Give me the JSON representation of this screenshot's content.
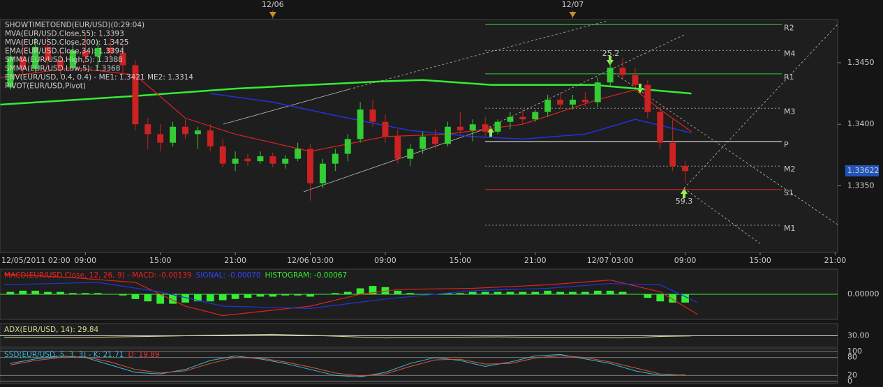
{
  "chart_data": [
    {
      "type": "candlestick",
      "legend": [
        {
          "text": "SHOWTIMETOEND(EUR/USD)(0:29:04)",
          "color": "#ffffff"
        },
        {
          "text": "MVA(EUR/USD.Close,55): 1.3393",
          "color": "#3344ff"
        },
        {
          "text": "MVA(EUR/USD.Close,200): 1.3425",
          "color": "#33dd33"
        },
        {
          "text": "EMA(EUR/USD.Close,34): 1.3394",
          "color": "#ee2222"
        },
        {
          "text": "SMMA(EUR/USD.High,5): 1.3388",
          "color": "#bbbbbb"
        },
        {
          "text": "SMMA(EUR/USD.Low,5): 1.3368",
          "color": "#bbbbbb"
        },
        {
          "text": "ENV(EUR/USD, 0.4, 0.4) - ME1: 1.3421  ME2: 1.3314",
          "color": "#888888"
        },
        {
          "text": "PIVOT(EUR/USD,Pivot)",
          "color": "#ffffff"
        }
      ],
      "up_color": "#33cc33",
      "down_color": "#cc2222",
      "x": [
        3,
        4,
        5,
        6,
        7,
        8,
        9,
        10,
        11,
        12,
        13,
        14,
        15,
        16,
        17,
        18,
        19,
        20,
        21,
        22,
        23,
        24,
        25,
        26,
        27,
        28,
        29,
        30,
        31,
        32,
        33,
        34,
        35,
        36,
        37,
        38,
        39,
        40,
        41,
        42,
        43,
        44,
        45,
        46,
        47,
        48,
        49,
        50,
        51,
        52,
        53,
        54,
        55,
        56,
        57
      ],
      "ohlc": [
        [
          1.343,
          1.3462,
          1.3428,
          1.3455
        ],
        [
          1.3455,
          1.3468,
          1.344,
          1.3445
        ],
        [
          1.3445,
          1.347,
          1.3442,
          1.3463
        ],
        [
          1.3463,
          1.3471,
          1.3448,
          1.3452
        ],
        [
          1.3452,
          1.3462,
          1.344,
          1.3446
        ],
        [
          1.3446,
          1.3466,
          1.3444,
          1.346
        ],
        [
          1.346,
          1.3472,
          1.345,
          1.3455
        ],
        [
          1.3455,
          1.3468,
          1.3446,
          1.3462
        ],
        [
          1.3462,
          1.347,
          1.3452,
          1.3458
        ],
        [
          1.3458,
          1.3465,
          1.344,
          1.3448
        ],
        [
          1.3448,
          1.3452,
          1.3395,
          1.34
        ],
        [
          1.34,
          1.3405,
          1.338,
          1.3392
        ],
        [
          1.3392,
          1.34,
          1.3378,
          1.3385
        ],
        [
          1.3385,
          1.3402,
          1.3382,
          1.3398
        ],
        [
          1.3398,
          1.3404,
          1.3388,
          1.3392
        ],
        [
          1.3392,
          1.3398,
          1.338,
          1.3395
        ],
        [
          1.3395,
          1.34,
          1.3378,
          1.3382
        ],
        [
          1.3382,
          1.3388,
          1.3365,
          1.3368
        ],
        [
          1.3368,
          1.3378,
          1.3362,
          1.3372
        ],
        [
          1.3372,
          1.3376,
          1.3366,
          1.337
        ],
        [
          1.337,
          1.3378,
          1.3368,
          1.3374
        ],
        [
          1.3374,
          1.3377,
          1.3365,
          1.3368
        ],
        [
          1.3368,
          1.3375,
          1.3364,
          1.3372
        ],
        [
          1.3372,
          1.3385,
          1.337,
          1.338
        ],
        [
          1.338,
          1.3384,
          1.3338,
          1.3352
        ],
        [
          1.3352,
          1.3372,
          1.3348,
          1.3368
        ],
        [
          1.3368,
          1.338,
          1.3362,
          1.3376
        ],
        [
          1.3376,
          1.3392,
          1.337,
          1.3388
        ],
        [
          1.3388,
          1.3418,
          1.3385,
          1.3412
        ],
        [
          1.3412,
          1.342,
          1.3398,
          1.3402
        ],
        [
          1.3402,
          1.3408,
          1.3385,
          1.339
        ],
        [
          1.339,
          1.3396,
          1.3368,
          1.3372
        ],
        [
          1.3372,
          1.3384,
          1.3366,
          1.338
        ],
        [
          1.338,
          1.3394,
          1.3376,
          1.339
        ],
        [
          1.339,
          1.3396,
          1.338,
          1.3384
        ],
        [
          1.3384,
          1.3402,
          1.3382,
          1.3398
        ],
        [
          1.3398,
          1.341,
          1.3392,
          1.3395
        ],
        [
          1.3395,
          1.3404,
          1.3386,
          1.34
        ],
        [
          1.34,
          1.3406,
          1.339,
          1.3394
        ],
        [
          1.3394,
          1.3404,
          1.3392,
          1.3402
        ],
        [
          1.3402,
          1.341,
          1.3396,
          1.3406
        ],
        [
          1.3406,
          1.3412,
          1.34,
          1.3404
        ],
        [
          1.3404,
          1.3412,
          1.3402,
          1.341
        ],
        [
          1.341,
          1.3424,
          1.3406,
          1.342
        ],
        [
          1.342,
          1.3426,
          1.3412,
          1.3416
        ],
        [
          1.3416,
          1.3424,
          1.3412,
          1.342
        ],
        [
          1.342,
          1.3426,
          1.3414,
          1.3418
        ],
        [
          1.3418,
          1.3438,
          1.3414,
          1.3434
        ],
        [
          1.3434,
          1.3452,
          1.343,
          1.3446
        ],
        [
          1.3446,
          1.3454,
          1.3436,
          1.344
        ],
        [
          1.344,
          1.3446,
          1.343,
          1.3432
        ],
        [
          1.3432,
          1.3436,
          1.3405,
          1.341
        ],
        [
          1.341,
          1.3414,
          1.338,
          1.3385
        ],
        [
          1.3385,
          1.3404,
          1.3362,
          1.3366
        ],
        [
          1.3366,
          1.337,
          1.3352,
          1.3362
        ]
      ],
      "lines": [
        {
          "color": "#33ee33",
          "width": 2.5,
          "x": [
            2.2,
            13,
            21,
            33,
            36,
            41.5,
            49.7,
            57.5
          ],
          "values": [
            1.3416,
            1.3423,
            1.3429,
            1.3435,
            1.3436,
            1.3432,
            1.3432,
            1.3425
          ]
        },
        {
          "color": "#2233dd",
          "width": 1.5,
          "x": [
            19,
            24,
            30,
            35,
            40,
            44,
            49,
            53,
            57.5
          ],
          "values": [
            1.3425,
            1.3418,
            1.3405,
            1.3395,
            1.339,
            1.3388,
            1.3392,
            1.3404,
            1.3393
          ]
        },
        {
          "color": "#dd2222",
          "width": 1.2,
          "x": [
            2.2,
            8,
            13,
            17,
            21,
            27,
            33,
            38,
            44,
            50,
            53,
            55,
            57.5
          ],
          "values": [
            1.3438,
            1.3446,
            1.344,
            1.3405,
            1.3392,
            1.3378,
            1.339,
            1.3392,
            1.34,
            1.342,
            1.3428,
            1.3412,
            1.3394
          ]
        }
      ],
      "levels": [
        {
          "label": "R2",
          "value": 1.3481,
          "color": "#33cc33",
          "dash": false
        },
        {
          "label": "M4",
          "value": 1.346,
          "color": "#999999",
          "dash": true
        },
        {
          "label": "R1",
          "value": 1.3441,
          "color": "#33cc33",
          "dash": false
        },
        {
          "label": "M3",
          "value": 1.3413,
          "color": "#999999",
          "dash": true
        },
        {
          "label": "P",
          "value": 1.3386,
          "color": "#ffffff",
          "dash": false
        },
        {
          "label": "M2",
          "value": 1.3366,
          "color": "#999999",
          "dash": true
        },
        {
          "label": "S1",
          "value": 1.3347,
          "color": "#dd2222",
          "dash": false
        },
        {
          "label": "M1",
          "value": 1.3318,
          "color": "#999999",
          "dash": true
        }
      ],
      "annotations": [
        "25.2",
        "59.3"
      ],
      "last_price": {
        "value": 1.33622,
        "label": "1.33622"
      },
      "date_markers": [
        {
          "value": 24,
          "label": "12/06"
        },
        {
          "value": 48,
          "label": "12/07"
        }
      ],
      "xlim": [
        2.17,
        69.2
      ],
      "ylim": [
        1.3297,
        1.3484
      ],
      "xticks": [
        {
          "value": 2,
          "label": "12/05/2011 02:00"
        },
        {
          "value": 9,
          "label": "09:00"
        },
        {
          "value": 15,
          "label": "15:00"
        },
        {
          "value": 21,
          "label": "21:00"
        },
        {
          "value": 27,
          "label": "12/06 03:00"
        },
        {
          "value": 33,
          "label": "09:00"
        },
        {
          "value": 39,
          "label": "15:00"
        },
        {
          "value": 45,
          "label": "21:00"
        },
        {
          "value": 51,
          "label": "12/07 03:00"
        },
        {
          "value": 57,
          "label": "09:00"
        },
        {
          "value": 63,
          "label": "15:00"
        },
        {
          "value": 69,
          "label": "21:00"
        }
      ],
      "yticks": [
        {
          "value": 1.335,
          "label": "1.3350"
        },
        {
          "value": 1.34,
          "label": "1.3400"
        },
        {
          "value": 1.345,
          "label": "1.3450"
        }
      ]
    },
    {
      "type": "macd",
      "legend": [
        {
          "text": "MACD(EUR/USD.Close, 12, 26, 9) -  MACD: -0.00139",
          "color": "#ee2222"
        },
        {
          "text": "SIGNAL: -0.00070",
          "color": "#3344ff"
        },
        {
          "text": "HISTOGRAM: -0.00067",
          "color": "#33ee33"
        }
      ],
      "color": "#33ee33",
      "x": [
        3,
        4,
        5,
        6,
        7,
        8,
        9,
        10,
        11,
        12,
        13,
        14,
        15,
        16,
        17,
        18,
        19,
        20,
        21,
        22,
        23,
        24,
        25,
        26,
        27,
        28,
        29,
        30,
        31,
        32,
        33,
        34,
        35,
        36,
        37,
        38,
        39,
        40,
        41,
        42,
        43,
        44,
        45,
        46,
        47,
        48,
        49,
        50,
        51,
        52,
        53,
        54,
        55,
        56,
        57
      ],
      "values": [
        0.0002,
        0.0003,
        0.0003,
        0.0002,
        0.0002,
        0.0001,
        0.0001,
        0.0001,
        0.0,
        -0.0001,
        -0.0004,
        -0.0006,
        -0.0008,
        -0.0008,
        -0.0007,
        -0.0006,
        -0.0006,
        -0.0005,
        -0.0004,
        -0.0003,
        -0.0002,
        -0.0002,
        -0.0001,
        -0.0001,
        -0.0002,
        0.0,
        0.0001,
        0.0002,
        0.0005,
        0.0007,
        0.0006,
        0.0003,
        0.0001,
        0.0,
        0.0,
        0.0001,
        0.0001,
        0.0002,
        0.0002,
        0.0002,
        0.0002,
        0.0002,
        0.0002,
        0.0003,
        0.0002,
        0.0002,
        0.0002,
        0.0003,
        0.0003,
        0.0002,
        0.0,
        -0.0003,
        -0.0006,
        -0.0007,
        -0.0007
      ],
      "lines": [
        {
          "color": "#dd2222",
          "width": 1.2,
          "x": [
            2.5,
            8,
            13,
            17,
            20,
            27,
            31,
            34,
            40,
            46,
            51,
            55,
            58
          ],
          "values": [
            0.0017,
            0.0014,
            0.001,
            -0.001,
            -0.0018,
            -0.001,
            0.0,
            0.0004,
            0.0005,
            0.0008,
            0.0012,
            0.0002,
            -0.0017
          ]
        },
        {
          "color": "#2233dd",
          "width": 1.2,
          "x": [
            2.5,
            10,
            15,
            20,
            27,
            33,
            40,
            46,
            51,
            55,
            58
          ],
          "values": [
            0.0008,
            0.001,
            0.0002,
            -0.001,
            -0.0012,
            -0.0004,
            0.0003,
            0.0005,
            0.0009,
            0.0008,
            -0.0007
          ]
        }
      ],
      "ylim": [
        -0.002,
        0.002
      ],
      "yticks": [
        {
          "value": 0,
          "label": "0.00000"
        }
      ],
      "tick_color": "#33ee33"
    },
    {
      "type": "line",
      "legend": [
        {
          "text": "ADX(EUR/USD, 14): 29.84",
          "color": "#dddd99"
        }
      ],
      "lines": [
        {
          "color": "#dddd99",
          "width": 1,
          "x": [
            2.5,
            8,
            14,
            20,
            24,
            28,
            33,
            38,
            42,
            47,
            52,
            55,
            57.5
          ],
          "values": [
            28,
            27.5,
            29,
            31,
            32,
            30,
            27,
            28,
            28.5,
            27.5,
            27,
            29,
            29.84
          ]
        }
      ],
      "ylim": [
        15,
        45
      ],
      "yticks": [
        {
          "value": 30,
          "label": "30.00"
        }
      ],
      "tick_color": "#cccccc"
    },
    {
      "type": "line",
      "legend": [
        {
          "text": "SSD(EUR/USD, 5, 3, 3) -  K: 21.71",
          "color": "#33bbdd"
        },
        {
          "text": "D: 19.89",
          "color": "#ee3333"
        }
      ],
      "lines": [
        {
          "color": "#33bbdd",
          "width": 1,
          "x": [
            3,
            5,
            7,
            9,
            11,
            13,
            15,
            17,
            19,
            21,
            23,
            25,
            27,
            29,
            31,
            33,
            35,
            37,
            39,
            41,
            43,
            45,
            47,
            49,
            51,
            53,
            55,
            57
          ],
          "values": [
            60,
            75,
            85,
            80,
            55,
            30,
            25,
            40,
            70,
            85,
            75,
            60,
            40,
            20,
            15,
            30,
            60,
            80,
            70,
            50,
            65,
            85,
            90,
            75,
            60,
            35,
            20,
            21.71
          ]
        },
        {
          "color": "#dd5533",
          "width": 1,
          "x": [
            3,
            5,
            7,
            9,
            11,
            13,
            15,
            17,
            19,
            21,
            23,
            25,
            27,
            29,
            31,
            33,
            35,
            37,
            39,
            41,
            43,
            45,
            47,
            49,
            51,
            53,
            55,
            57
          ],
          "values": [
            55,
            70,
            80,
            82,
            65,
            40,
            28,
            35,
            60,
            80,
            78,
            65,
            48,
            28,
            18,
            25,
            50,
            72,
            74,
            58,
            60,
            78,
            86,
            80,
            65,
            45,
            25,
            19.89
          ]
        }
      ],
      "ylim": [
        -5,
        105
      ],
      "yticks": [
        100,
        80,
        20,
        0
      ],
      "tick_color": "#777777"
    }
  ]
}
